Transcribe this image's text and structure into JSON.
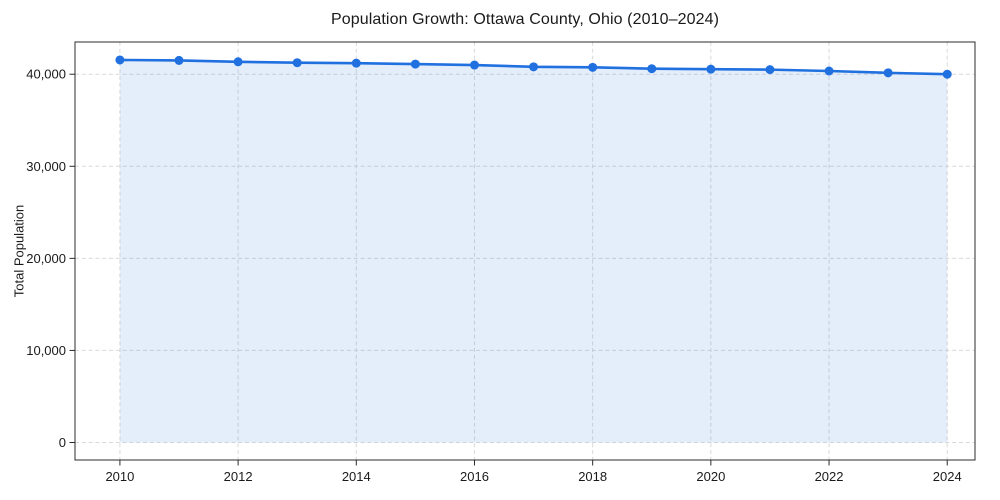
{
  "figure": {
    "background": "#ffffff"
  },
  "chart_data": {
    "type": "line",
    "title": "Population Growth: Ottawa County, Ohio (2010–2024)",
    "xlabel": "",
    "ylabel": "Total Population",
    "x": [
      2010,
      2011,
      2012,
      2013,
      2014,
      2015,
      2016,
      2017,
      2018,
      2019,
      2020,
      2021,
      2022,
      2023,
      2024
    ],
    "values": [
      41550,
      41500,
      41350,
      41250,
      41200,
      41100,
      41000,
      40800,
      40750,
      40600,
      40550,
      40500,
      40350,
      40150,
      40000
    ],
    "xticks": [
      2010,
      2012,
      2014,
      2016,
      2018,
      2020,
      2022,
      2024
    ],
    "yticks": [
      0,
      10000,
      20000,
      30000,
      40000
    ],
    "ytick_labels": [
      "0",
      "10,000",
      "20,000",
      "30,000",
      "40,000"
    ],
    "xlim": [
      2009.24,
      2024.47
    ],
    "ylim": [
      -1900,
      43500
    ],
    "area_baseline": 0,
    "grid": {
      "visible": true,
      "style": "dashed"
    },
    "legend": "none",
    "style": {
      "line_color": "#2070e0",
      "marker_color": "#2070e0",
      "fill_color": "rgba(32,112,224,0.12)",
      "grid_color": "#d9d9d9",
      "axis_color": "#2b2b2b",
      "text_color": "#1a1a1a",
      "marker": "circle"
    }
  }
}
